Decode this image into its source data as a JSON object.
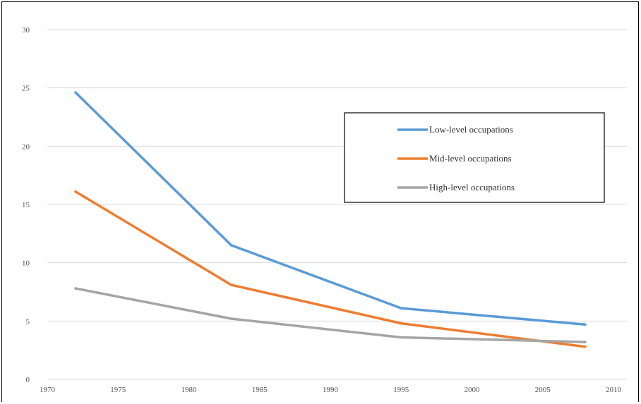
{
  "chart_data": {
    "type": "line",
    "title": "",
    "xlabel": "",
    "ylabel": "",
    "xlim": [
      1970,
      2010
    ],
    "ylim": [
      0,
      30
    ],
    "x_ticks": [
      1970,
      1975,
      1980,
      1985,
      1990,
      1995,
      2000,
      2005,
      2010
    ],
    "y_ticks": [
      0,
      5,
      10,
      15,
      20,
      25,
      30
    ],
    "grid": "horizontal",
    "legend_position": "upper-right",
    "series": [
      {
        "name": "Low-level occupations",
        "color": "#5b9bd5",
        "x": [
          1972,
          1983,
          1995,
          2008
        ],
        "y": [
          24.6,
          11.5,
          6.1,
          4.7
        ]
      },
      {
        "name": "Mid-level occupations",
        "color": "#ed7d31",
        "x": [
          1972,
          1983,
          1995,
          2008
        ],
        "y": [
          16.1,
          8.1,
          4.8,
          2.8
        ]
      },
      {
        "name": "High-level occupations",
        "color": "#a5a5a5",
        "x": [
          1972,
          1983,
          1995,
          2008
        ],
        "y": [
          7.8,
          5.2,
          3.6,
          3.2
        ]
      }
    ]
  }
}
